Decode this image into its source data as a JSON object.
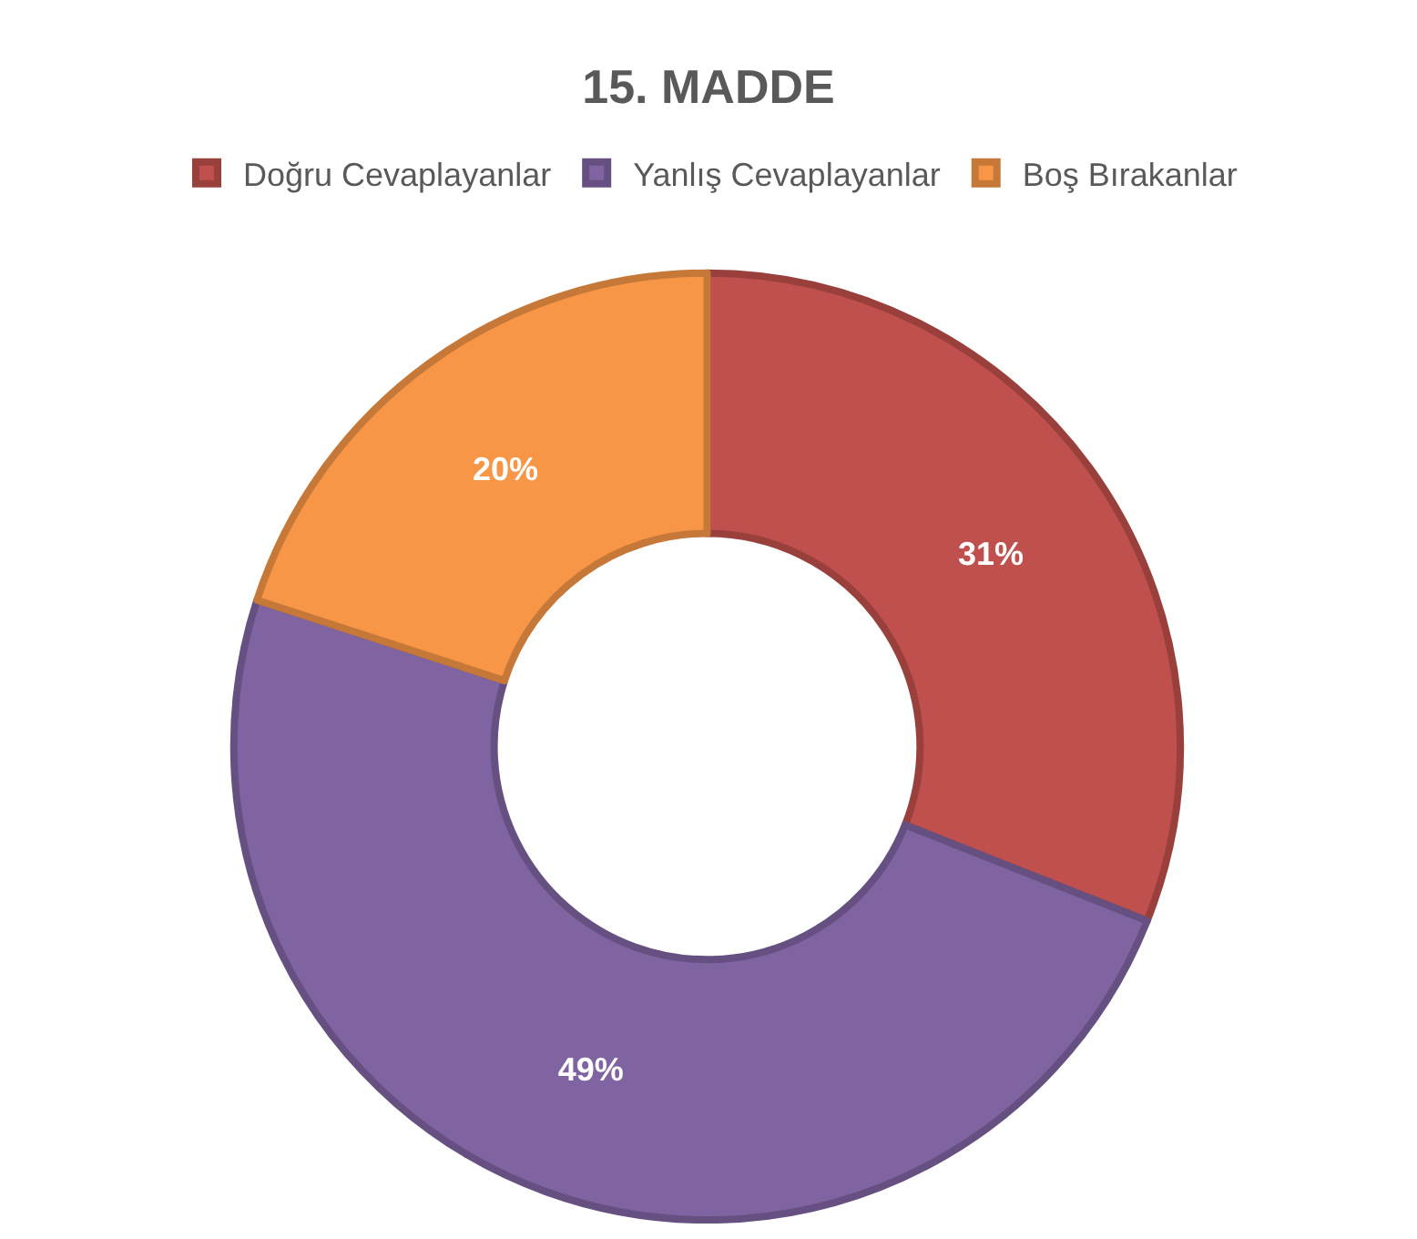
{
  "chart_data": {
    "type": "donut",
    "title": "15. MADDE",
    "categories": [
      "Doğru Cevaplayanlar",
      "Yanlış Cevaplayanlar",
      "Boş Bırakanlar"
    ],
    "values": [
      31,
      49,
      20
    ],
    "value_labels": [
      "31%",
      "49%",
      "20%"
    ],
    "colors": [
      "#c0504d",
      "#8064a2",
      "#f79646"
    ],
    "legend": "top"
  }
}
